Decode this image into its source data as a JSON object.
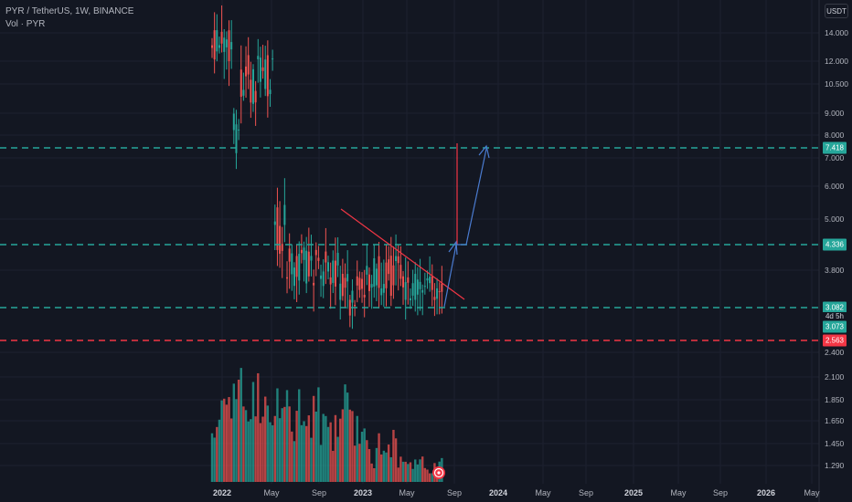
{
  "header": {
    "symbol_line": "PYR / TetherUS, 1W, BINANCE",
    "volume_line": "Vol · PYR",
    "currency": "USDT"
  },
  "price_axis": {
    "ticks": [
      "14.000",
      "12.000",
      "10.500",
      "9.000",
      "8.000",
      "7.000",
      "6.000",
      "5.000",
      "3.800",
      "2.400",
      "2.100",
      "1.850",
      "1.650",
      "1.450",
      "1.290"
    ]
  },
  "price_labels": {
    "level_top": "7.418",
    "level_mid": "4.336",
    "level_support": "3.082",
    "countdown": "4d 5h",
    "current_price": "3.073",
    "level_bottom": "2.563"
  },
  "time_axis": {
    "labels": [
      "2022",
      "May",
      "Sep",
      "2023",
      "May",
      "Sep",
      "2024",
      "May",
      "Sep",
      "2025",
      "May",
      "Sep",
      "2026",
      "May"
    ]
  },
  "colors": {
    "background": "#131722",
    "up": "#26a69a",
    "down": "#ef5350",
    "level_green": "#26a69a",
    "level_red": "#f23645",
    "arrow_blue": "#4a7bd0",
    "trendline_red": "#f23645"
  },
  "drawings": {
    "horizontal_levels": [
      {
        "name": "resistance-target",
        "price": "7.418",
        "color": "green"
      },
      {
        "name": "breakout-level",
        "price": "4.336",
        "color": "green"
      },
      {
        "name": "support-level",
        "price": "3.082",
        "color": "green"
      },
      {
        "name": "stop-level",
        "price": "2.563",
        "color": "red"
      }
    ],
    "icons": [
      "chart-settings-icon"
    ]
  }
}
